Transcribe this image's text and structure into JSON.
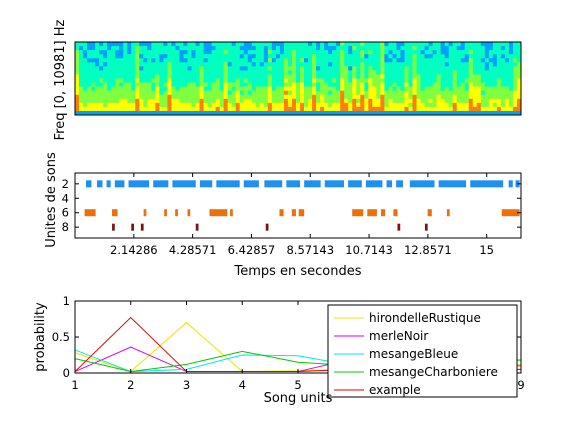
{
  "chart_data": [
    {
      "type": "heatmap",
      "ylabel": "Freq [0, 10981] Hz",
      "description_colors": [
        "#0000ff",
        "#00a0ff",
        "#00ffc0",
        "#80ff40",
        "#ffff00",
        "#ff8000",
        "#c00000"
      ]
    },
    {
      "type": "scatter",
      "ylabel": "Unites de sons",
      "xlabel": "Temps en secondes",
      "xlim": [
        0,
        16.25
      ],
      "ylim": [
        9.5,
        0.5
      ],
      "x_ticks": [
        {
          "value": 2.14286,
          "label": "2.14286"
        },
        {
          "value": 4.28571,
          "label": "4.28571"
        },
        {
          "value": 6.42857,
          "label": "6.42857"
        },
        {
          "value": 8.57143,
          "label": "8.57143"
        },
        {
          "value": 10.7143,
          "label": "10.7143"
        },
        {
          "value": 12.8571,
          "label": "12.8571"
        },
        {
          "value": 15,
          "label": "15"
        }
      ],
      "y_ticks": [
        {
          "value": 2,
          "label": "2"
        },
        {
          "value": 4,
          "label": "4"
        },
        {
          "value": 6,
          "label": "6"
        },
        {
          "value": 8,
          "label": "8"
        }
      ],
      "series": [
        {
          "unit": 2,
          "color": "#1f8ff0",
          "intervals": [
            [
              0.4,
              0.6
            ],
            [
              0.8,
              1.0
            ],
            [
              1.15,
              1.3
            ],
            [
              1.45,
              1.8
            ],
            [
              1.95,
              2.7
            ],
            [
              2.85,
              3.4
            ],
            [
              3.55,
              4.4
            ],
            [
              4.55,
              5.0
            ],
            [
              5.15,
              6.0
            ],
            [
              6.15,
              6.7
            ],
            [
              6.9,
              7.55
            ],
            [
              7.7,
              8.2
            ],
            [
              8.35,
              8.95
            ],
            [
              9.1,
              9.8
            ],
            [
              9.95,
              10.45
            ],
            [
              10.6,
              11.2
            ],
            [
              11.35,
              11.55
            ],
            [
              11.7,
              11.95
            ],
            [
              12.2,
              13.1
            ],
            [
              13.25,
              14.25
            ],
            [
              14.4,
              15.6
            ],
            [
              15.8,
              15.95
            ],
            [
              16.05,
              16.2
            ]
          ]
        },
        {
          "unit": 6,
          "color": "#ec6f08",
          "intervals": [
            [
              0.35,
              0.75
            ],
            [
              1.35,
              1.55
            ],
            [
              2.5,
              2.6
            ],
            [
              3.25,
              3.35
            ],
            [
              3.65,
              3.75
            ],
            [
              4.1,
              4.2
            ],
            [
              4.9,
              5.55
            ],
            [
              5.65,
              5.75
            ],
            [
              7.45,
              7.6
            ],
            [
              7.9,
              8.05
            ],
            [
              8.15,
              8.35
            ],
            [
              10.1,
              10.5
            ],
            [
              10.65,
              11.0
            ],
            [
              11.15,
              11.3
            ],
            [
              11.6,
              11.75
            ],
            [
              12.85,
              13.0
            ],
            [
              13.55,
              13.65
            ],
            [
              15.55,
              16.2
            ]
          ]
        },
        {
          "unit": 8,
          "color": "#7e1414",
          "intervals": [
            [
              1.35,
              1.45
            ],
            [
              2.05,
              2.15
            ],
            [
              2.4,
              2.5
            ],
            [
              4.4,
              4.5
            ],
            [
              6.95,
              7.05
            ],
            [
              11.75,
              11.85
            ],
            [
              12.75,
              12.85
            ]
          ]
        }
      ]
    },
    {
      "type": "line",
      "xlabel": "Song units",
      "ylabel": "probability",
      "xlim": [
        1,
        9
      ],
      "ylim": [
        0,
        1
      ],
      "x": [
        1,
        2,
        3,
        4,
        5,
        6,
        7,
        8,
        9
      ],
      "x_ticks": [
        1,
        2,
        3,
        4,
        5,
        9
      ],
      "y_ticks": [
        {
          "value": 0,
          "label": "0"
        },
        {
          "value": 0.5,
          "label": "0.5"
        },
        {
          "value": 1,
          "label": "1"
        }
      ],
      "legend_position": "right",
      "series": [
        {
          "name": "hirondelleRustique",
          "color": "#e8e800",
          "values": [
            0.28,
            0.02,
            0.7,
            0.02,
            0.03,
            0.05,
            0.08,
            0.1,
            0.12
          ]
        },
        {
          "name": "merleNoir",
          "color": "#e000e0",
          "values": [
            0.02,
            0.36,
            0.02,
            0.02,
            0.02,
            0.2,
            0.1,
            0.08,
            0.1
          ]
        },
        {
          "name": "mesangeBleue",
          "color": "#00e8e8",
          "values": [
            0.32,
            0.02,
            0.05,
            0.25,
            0.24,
            0.1,
            0.12,
            0.15,
            0.18
          ]
        },
        {
          "name": "mesangeCharboniere",
          "color": "#00c800",
          "values": [
            0.2,
            0.02,
            0.12,
            0.3,
            0.15,
            0.1,
            0.12,
            0.15,
            0.18
          ]
        },
        {
          "name": "example",
          "color": "#e00000",
          "values": [
            0.02,
            0.77,
            0.02,
            0.02,
            0.02,
            0.05,
            0.05,
            0.05,
            0.05
          ]
        }
      ]
    }
  ]
}
